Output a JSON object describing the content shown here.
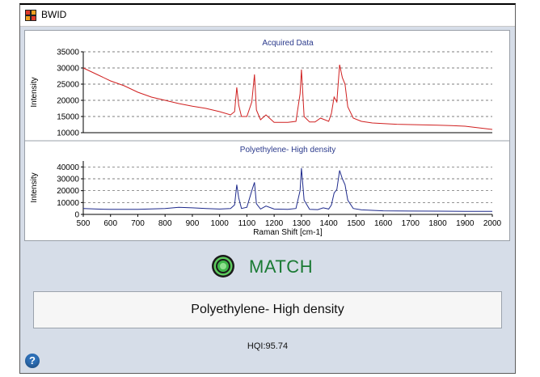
{
  "window": {
    "title": "BWID"
  },
  "status": {
    "match_text": "MATCH",
    "match_color": "#1a7a33",
    "result_name": "Polyethylene- High density",
    "hqi_text": "HQI:95.74"
  },
  "icons": {
    "app": "app-grid-icon",
    "match": "target-match-icon",
    "help": "question-help-icon"
  },
  "chart_data": [
    {
      "type": "line",
      "title": "Acquired Data",
      "ylabel": "Intensity",
      "xlabel": "",
      "xlim": [
        500,
        2000
      ],
      "ylim": [
        10000,
        35000
      ],
      "yticks": [
        "35000",
        "30000",
        "25000",
        "20000",
        "15000",
        "10000"
      ],
      "grid": "dashed horizontal",
      "color": "#d02020",
      "series": [
        {
          "x": [
            500,
            550,
            600,
            650,
            700,
            750,
            800,
            850,
            900,
            950,
            1000,
            1040,
            1055,
            1063,
            1070,
            1080,
            1100,
            1118,
            1128,
            1135,
            1150,
            1170,
            1200,
            1250,
            1280,
            1295,
            1300,
            1310,
            1330,
            1350,
            1370,
            1400,
            1410,
            1420,
            1430,
            1440,
            1450,
            1460,
            1470,
            1490,
            1520,
            1560,
            1600,
            1650,
            1700,
            1750,
            1800,
            1850,
            1900,
            1950,
            2000
          ],
          "values": [
            30000,
            28000,
            26000,
            24500,
            22500,
            21000,
            20000,
            19000,
            18200,
            17500,
            16500,
            15500,
            16500,
            24000,
            18500,
            15000,
            15000,
            19500,
            28000,
            17000,
            14000,
            15500,
            13200,
            13200,
            13500,
            22000,
            29500,
            15000,
            13300,
            13300,
            14500,
            13500,
            16000,
            21000,
            19500,
            31000,
            27000,
            25000,
            18000,
            14500,
            13500,
            13000,
            12800,
            12600,
            12500,
            12400,
            12300,
            12200,
            12000,
            11500,
            11000
          ]
        }
      ]
    },
    {
      "type": "line",
      "title": "Polyethylene- High density",
      "ylabel": "Intensity",
      "xlabel": "Raman Shift [cm-1]",
      "xlim": [
        500,
        2000
      ],
      "ylim": [
        0,
        45000
      ],
      "yticks": [
        "40000",
        "30000",
        "20000",
        "10000",
        "0"
      ],
      "xticks": [
        "500",
        "600",
        "700",
        "800",
        "900",
        "1000",
        "1100",
        "1200",
        "1300",
        "1400",
        "1500",
        "1600",
        "1700",
        "1800",
        "1900",
        "2000"
      ],
      "grid": "dashed horizontal",
      "color": "#1e2a8c",
      "series": [
        {
          "x": [
            500,
            550,
            600,
            700,
            800,
            850,
            900,
            950,
            1000,
            1040,
            1055,
            1063,
            1070,
            1080,
            1100,
            1118,
            1128,
            1135,
            1150,
            1170,
            1200,
            1250,
            1280,
            1295,
            1300,
            1310,
            1330,
            1360,
            1380,
            1400,
            1410,
            1420,
            1430,
            1440,
            1450,
            1460,
            1470,
            1490,
            1520,
            1600,
            1700,
            1800,
            1900,
            2000
          ],
          "values": [
            5000,
            4500,
            4200,
            4300,
            5000,
            6000,
            5500,
            5000,
            4500,
            5000,
            8000,
            25000,
            14000,
            5000,
            6000,
            20000,
            27000,
            9000,
            4500,
            7000,
            4500,
            4200,
            5000,
            20000,
            39000,
            12000,
            4200,
            4000,
            5500,
            4500,
            8000,
            18000,
            21000,
            37000,
            30000,
            25000,
            12000,
            5000,
            3800,
            3000,
            2800,
            2700,
            2600,
            2500
          ]
        }
      ]
    }
  ]
}
